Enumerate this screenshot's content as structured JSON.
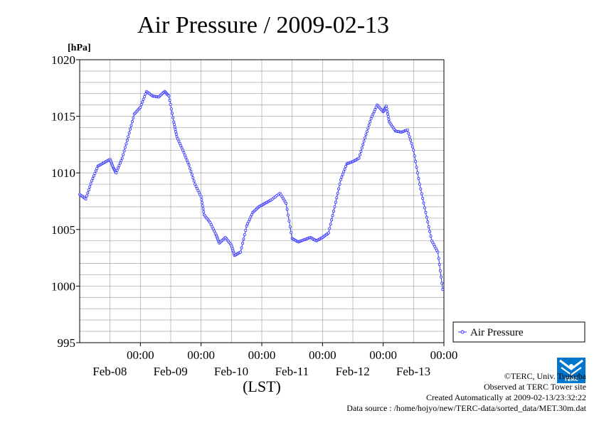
{
  "chart_data": {
    "type": "line",
    "title": "Air Pressure / 2009-02-13",
    "ylabel": "[hPa]",
    "xlabel": "(LST)",
    "ylim": [
      995,
      1020
    ],
    "yticks": [
      "995",
      "1000",
      "1005",
      "1010",
      "1015",
      "1020"
    ],
    "xlim_days_from_feb08_0000": [
      -1.0,
      5.0
    ],
    "xticks": [
      {
        "time": "00:00",
        "date": "Feb-08"
      },
      {
        "time": "00:00",
        "date": "Feb-09"
      },
      {
        "time": "00:00",
        "date": "Feb-10"
      },
      {
        "time": "00:00",
        "date": "Feb-11"
      },
      {
        "time": "00:00",
        "date": "Feb-12"
      },
      {
        "time": "00:00",
        "date": "Feb-13"
      }
    ],
    "grid": true,
    "legend_position": "right",
    "series": [
      {
        "name": "Air Pressure",
        "color": "#3333ff",
        "marker": "circle",
        "points": [
          [
            -1.0,
            1008.1
          ],
          [
            -0.9,
            1007.7
          ],
          [
            -0.8,
            1009.3
          ],
          [
            -0.7,
            1010.6
          ],
          [
            -0.6,
            1010.9
          ],
          [
            -0.5,
            1011.2
          ],
          [
            -0.45,
            1010.5
          ],
          [
            -0.4,
            1010.0
          ],
          [
            -0.3,
            1011.3
          ],
          [
            -0.2,
            1013.2
          ],
          [
            -0.1,
            1015.2
          ],
          [
            0.0,
            1015.8
          ],
          [
            0.1,
            1017.2
          ],
          [
            0.2,
            1016.8
          ],
          [
            0.3,
            1016.7
          ],
          [
            0.4,
            1017.2
          ],
          [
            0.47,
            1016.8
          ],
          [
            0.55,
            1014.5
          ],
          [
            0.6,
            1013.2
          ],
          [
            0.7,
            1012.0
          ],
          [
            0.8,
            1010.7
          ],
          [
            0.9,
            1009.0
          ],
          [
            1.0,
            1007.9
          ],
          [
            1.05,
            1006.3
          ],
          [
            1.15,
            1005.6
          ],
          [
            1.25,
            1004.5
          ],
          [
            1.3,
            1003.8
          ],
          [
            1.4,
            1004.3
          ],
          [
            1.5,
            1003.6
          ],
          [
            1.55,
            1002.7
          ],
          [
            1.65,
            1003.0
          ],
          [
            1.75,
            1005.3
          ],
          [
            1.85,
            1006.5
          ],
          [
            1.95,
            1007.0
          ],
          [
            2.05,
            1007.3
          ],
          [
            2.15,
            1007.6
          ],
          [
            2.3,
            1008.2
          ],
          [
            2.4,
            1007.3
          ],
          [
            2.5,
            1004.2
          ],
          [
            2.6,
            1003.9
          ],
          [
            2.7,
            1004.1
          ],
          [
            2.8,
            1004.3
          ],
          [
            2.9,
            1004.0
          ],
          [
            3.0,
            1004.3
          ],
          [
            3.1,
            1004.7
          ],
          [
            3.2,
            1007.0
          ],
          [
            3.3,
            1009.4
          ],
          [
            3.4,
            1010.8
          ],
          [
            3.5,
            1011.0
          ],
          [
            3.6,
            1011.3
          ],
          [
            3.7,
            1013.1
          ],
          [
            3.8,
            1014.8
          ],
          [
            3.9,
            1016.0
          ],
          [
            4.0,
            1015.4
          ],
          [
            4.05,
            1015.9
          ],
          [
            4.1,
            1014.5
          ],
          [
            4.2,
            1013.7
          ],
          [
            4.3,
            1013.6
          ],
          [
            4.4,
            1013.8
          ],
          [
            4.5,
            1012.0
          ],
          [
            4.6,
            1009.0
          ],
          [
            4.7,
            1006.5
          ],
          [
            4.8,
            1004.0
          ],
          [
            4.9,
            1003.0
          ],
          [
            4.98,
            999.7
          ]
        ]
      }
    ]
  },
  "credits": {
    "copyright": "©TERC, Univ. Tsukuba",
    "observed": "Observed at TERC Tower site",
    "created": "Created Automatically at 2009-02-13/23:32:22",
    "source": "Data source : /home/hojyo/new/TERC-data/sorted_data/MET.30m.dat"
  },
  "logo": {
    "text": "TERC",
    "color": "#0077cc"
  }
}
